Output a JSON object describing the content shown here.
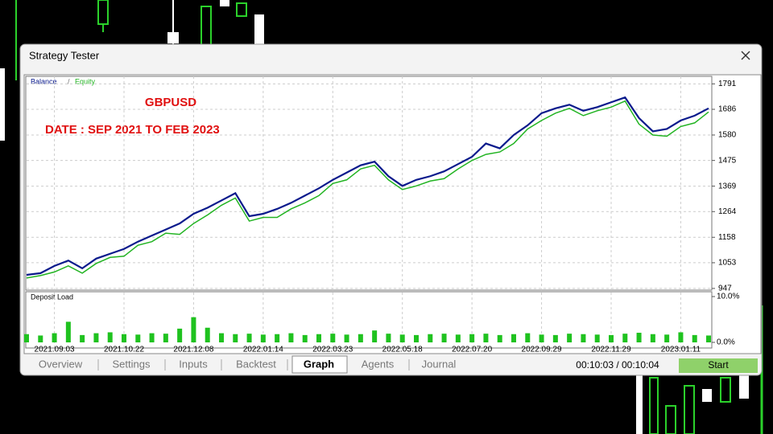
{
  "window": {
    "title": "Strategy Tester"
  },
  "chart_data": [
    {
      "type": "line",
      "annotations": [
        "GBPUSD",
        "DATE : SEP 2021 TO FEB 2023"
      ],
      "legend_separator": "/",
      "categories": [
        null,
        null,
        "2021.09.03",
        null,
        null,
        null,
        null,
        "2021.10.22",
        null,
        null,
        null,
        null,
        "2021.12.08",
        null,
        null,
        null,
        null,
        "2022.01.14",
        null,
        null,
        null,
        null,
        "2022.03.23",
        null,
        null,
        null,
        null,
        "2022.05.18",
        null,
        null,
        null,
        null,
        "2022.07.20",
        null,
        null,
        null,
        null,
        "2022.09.29",
        null,
        null,
        null,
        null,
        "2022.11.29",
        null,
        null,
        null,
        null,
        "2023.01.11",
        null,
        null
      ],
      "series": [
        {
          "name": "Balance",
          "color": "#0a1a8c",
          "values": [
            1003,
            1010,
            1040,
            1062,
            1030,
            1070,
            1090,
            1110,
            1140,
            1165,
            1190,
            1215,
            1255,
            1280,
            1310,
            1340,
            1245,
            1255,
            1275,
            1300,
            1330,
            1360,
            1395,
            1425,
            1455,
            1470,
            1410,
            1370,
            1395,
            1410,
            1430,
            1460,
            1490,
            1545,
            1525,
            1580,
            1620,
            1670,
            1690,
            1705,
            1680,
            1695,
            1715,
            1735,
            1650,
            1595,
            1605,
            1640,
            1660,
            1690
          ]
        },
        {
          "name": "Equity",
          "color": "#22b422",
          "values": [
            990,
            1000,
            1015,
            1040,
            1010,
            1050,
            1075,
            1080,
            1125,
            1140,
            1175,
            1170,
            1215,
            1250,
            1290,
            1320,
            1225,
            1240,
            1240,
            1275,
            1300,
            1330,
            1380,
            1395,
            1440,
            1455,
            1395,
            1355,
            1370,
            1390,
            1400,
            1440,
            1475,
            1500,
            1510,
            1545,
            1605,
            1640,
            1670,
            1690,
            1660,
            1680,
            1695,
            1720,
            1625,
            1580,
            1575,
            1615,
            1630,
            1675
          ]
        }
      ],
      "ylim": [
        940,
        1822
      ],
      "yticks": [
        947,
        1053,
        1158,
        1264,
        1369,
        1475,
        1580,
        1686,
        1791
      ],
      "grid": true
    },
    {
      "type": "bar",
      "title": "Deposit Load",
      "color": "#1fc21f",
      "values": [
        1.8,
        1.5,
        2,
        4.5,
        1.6,
        2,
        2.2,
        1.8,
        1.7,
        2,
        1.9,
        3,
        5.5,
        3.2,
        2,
        1.8,
        1.9,
        1.7,
        1.8,
        2,
        1.6,
        1.8,
        1.9,
        1.7,
        1.8,
        2.6,
        1.9,
        1.7,
        1.6,
        1.8,
        1.9,
        1.7,
        1.8,
        1.9,
        1.6,
        1.8,
        2,
        1.7,
        1.6,
        1.9,
        1.8,
        1.7,
        1.6,
        1.9,
        2.1,
        1.8,
        1.7,
        2.2,
        1.6,
        1.5
      ],
      "ylim": [
        0,
        10
      ],
      "yticks": [
        {
          "value": 10,
          "label": "10.0%"
        },
        {
          "value": 0,
          "label": "0.0%"
        }
      ]
    }
  ],
  "tabs": [
    "Overview",
    "Settings",
    "Inputs",
    "Backtest",
    "Graph",
    "Agents",
    "Journal"
  ],
  "status": "00:10:03 / 00:10:04",
  "button": "Start"
}
